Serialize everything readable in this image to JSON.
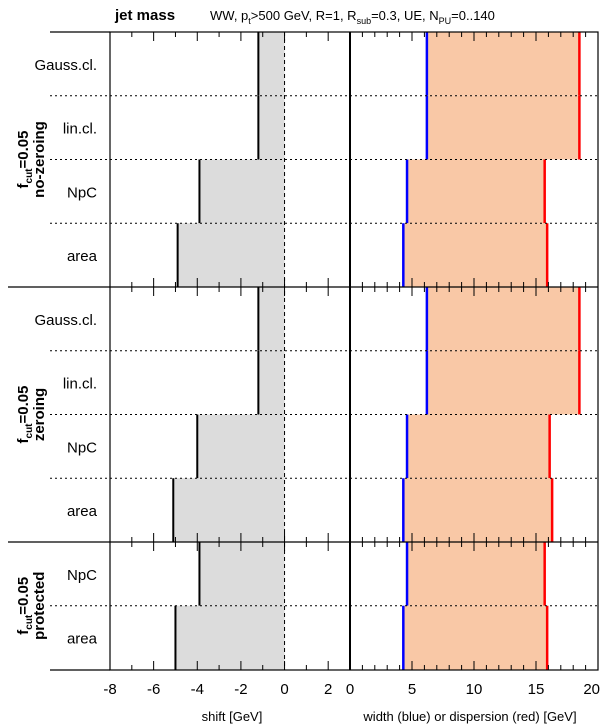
{
  "chart_data": {
    "type": "bar",
    "title": "jet mass",
    "subtitle": {
      "prefix": "WW, p",
      "pt_sub": "t",
      "mid1": ">500 GeV, R=1, R",
      "rsub_sub": "sub",
      "mid2": "=0.3, UE, N",
      "npu_sub": "PU",
      "suffix": "=0..140"
    },
    "left_panel": {
      "xlabel": "shift [GeV]",
      "xlim": [
        -8,
        3
      ],
      "xticks": [
        "-8",
        "-6",
        "-4",
        "-2",
        "0",
        "2"
      ],
      "xtick_values": [
        -8,
        -6,
        -4,
        -2,
        0,
        2
      ]
    },
    "right_panel": {
      "xlabel": "width (blue) or dispersion (red) [GeV]",
      "xlim": [
        0,
        20
      ],
      "xticks": [
        "0",
        "5",
        "10",
        "15",
        "20"
      ],
      "xtick_values": [
        0,
        5,
        10,
        15,
        20
      ]
    },
    "groups": [
      {
        "label_base": "f",
        "label_sub": "cut",
        "label_val": "=0.05",
        "label_name": "no-zeroing",
        "rows": [
          {
            "name": "Gauss.cl.",
            "shift": -1.2,
            "width": 6.2,
            "dispersion": 18.5
          },
          {
            "name": "lin.cl.",
            "shift": -1.2,
            "width": 6.2,
            "dispersion": 18.5
          },
          {
            "name": "NpC",
            "shift": -3.9,
            "width": 4.6,
            "dispersion": 15.7
          },
          {
            "name": "area",
            "shift": -4.9,
            "width": 4.3,
            "dispersion": 15.9
          }
        ]
      },
      {
        "label_base": "f",
        "label_sub": "cut",
        "label_val": "=0.05",
        "label_name": "zeroing",
        "rows": [
          {
            "name": "Gauss.cl.",
            "shift": -1.2,
            "width": 6.2,
            "dispersion": 18.5
          },
          {
            "name": "lin.cl.",
            "shift": -1.2,
            "width": 6.2,
            "dispersion": 18.5
          },
          {
            "name": "NpC",
            "shift": -4.0,
            "width": 4.6,
            "dispersion": 16.1
          },
          {
            "name": "area",
            "shift": -5.1,
            "width": 4.3,
            "dispersion": 16.3
          }
        ]
      },
      {
        "label_base": "f",
        "label_sub": "cut",
        "label_val": "=0.05",
        "label_name": "protected",
        "rows": [
          {
            "name": "NpC",
            "shift": -3.9,
            "width": 4.6,
            "dispersion": 15.7
          },
          {
            "name": "area",
            "shift": -5.0,
            "width": 4.3,
            "dispersion": 15.9
          }
        ]
      }
    ],
    "colors": {
      "shift_fill": "#dcdcdc",
      "band_fill": "#f9c8a6",
      "width_line": "#0000ff",
      "dispersion_line": "#ff0000",
      "frame": "#000000"
    }
  }
}
